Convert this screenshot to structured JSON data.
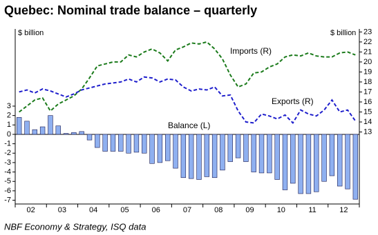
{
  "chart_data": {
    "type": "bar-line",
    "title": "Quebec: Nominal trade balance – quarterly",
    "y_label": "$ billion",
    "y2_label": "$ billion",
    "source": "NBF Economy & Strategy, ISQ data",
    "categories": [
      null,
      "02",
      null,
      null,
      null,
      "03",
      null,
      null,
      null,
      "04",
      null,
      null,
      null,
      "05",
      null,
      null,
      null,
      "06",
      null,
      null,
      null,
      "07",
      null,
      null,
      null,
      "08",
      null,
      null,
      null,
      "09",
      null,
      null,
      null,
      "10",
      null,
      null,
      null,
      "11",
      null,
      null,
      null,
      "12",
      null,
      null
    ],
    "ylim": [
      -7.4,
      11.2
    ],
    "yticks": [
      -7,
      -6,
      -5,
      -4,
      -3,
      -2,
      -1,
      0,
      1,
      2,
      3
    ],
    "y2lim": [
      5.8,
      23.3
    ],
    "y2ticks": [
      13,
      14,
      15,
      16,
      17,
      18,
      19,
      20,
      21,
      22,
      23
    ],
    "series": [
      {
        "name": "Balance (L)",
        "type": "bar",
        "color": "#8fb0f0",
        "values": [
          1.8,
          1.4,
          0.5,
          0.8,
          2.0,
          0.9,
          0.1,
          0.2,
          0.3,
          -0.6,
          -1.4,
          -1.8,
          -1.8,
          -1.8,
          -2.0,
          -1.9,
          -2.0,
          -3.1,
          -3.0,
          -2.8,
          -3.6,
          -4.6,
          -4.7,
          -4.8,
          -4.5,
          -4.6,
          -3.8,
          -2.9,
          -2.5,
          -2.9,
          -4.0,
          -4.1,
          -4.1,
          -4.8,
          -5.9,
          -5.2,
          -6.3,
          -6.3,
          -6.1,
          -5.0,
          -4.4,
          -5.5,
          -5.8,
          -6.9
        ]
      },
      {
        "name": "Imports (R)",
        "type": "line",
        "axis": "y2",
        "color": "#1a7a1a",
        "values": [
          15.0,
          15.6,
          16.2,
          16.4,
          15.1,
          15.8,
          16.2,
          16.6,
          17.3,
          18.4,
          19.6,
          19.8,
          20.0,
          20.0,
          20.7,
          20.5,
          21.0,
          21.3,
          20.9,
          20.1,
          21.2,
          21.5,
          21.9,
          21.8,
          22.0,
          21.3,
          20.3,
          18.7,
          17.5,
          17.8,
          18.9,
          19.0,
          19.5,
          19.8,
          20.5,
          20.7,
          20.6,
          20.9,
          20.6,
          20.5,
          20.5,
          20.9,
          21.0,
          20.7
        ]
      },
      {
        "name": "Exports (R)",
        "type": "line",
        "axis": "y2",
        "color": "#1e1ecc",
        "values": [
          17.0,
          17.2,
          16.9,
          17.3,
          17.1,
          16.8,
          16.5,
          16.8,
          17.2,
          17.4,
          17.6,
          17.8,
          17.9,
          18.0,
          18.3,
          18.0,
          18.5,
          18.4,
          18.0,
          18.3,
          18.2,
          17.5,
          17.1,
          17.3,
          17.2,
          17.5,
          16.6,
          16.7,
          15.1,
          14.0,
          13.9,
          14.8,
          14.6,
          14.3,
          14.7,
          13.9,
          15.2,
          14.8,
          14.6,
          15.2,
          16.2,
          15.0,
          15.2,
          14.1
        ]
      }
    ]
  }
}
